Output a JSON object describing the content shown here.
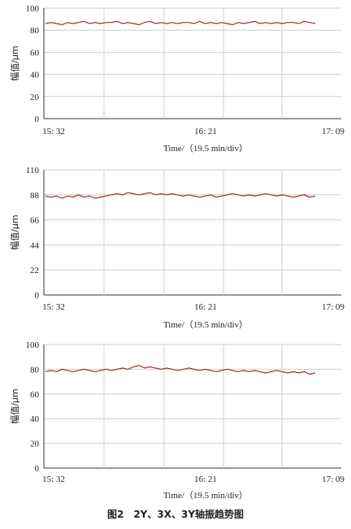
{
  "caption": "图2　2Y、3X、3Y轴振趋势图",
  "colors": {
    "line": "#a52a2a",
    "grid": "#cfcfcf",
    "axis": "#333333"
  },
  "chart_data": [
    {
      "type": "line",
      "ylabel": "幅值/μm",
      "xlabel": "Time/（19.5 min/div）",
      "ylim": [
        0,
        100
      ],
      "yticks": [
        "0",
        "20",
        "40",
        "60",
        "80",
        "100"
      ],
      "xticks": [
        "15: 32",
        "16: 21",
        "17: 09"
      ],
      "grid": true,
      "series": [
        {
          "values": [
            86,
            87,
            86,
            85,
            87,
            86,
            87,
            88,
            86,
            87,
            86,
            87,
            87,
            88,
            86,
            87,
            86,
            85,
            87,
            88,
            86,
            87,
            86,
            87,
            86,
            87,
            87,
            86,
            88,
            86,
            87,
            86,
            87,
            86,
            85,
            87,
            86,
            87,
            88,
            86,
            87,
            86,
            87,
            86,
            87,
            87,
            86,
            88,
            87,
            86
          ]
        }
      ]
    },
    {
      "type": "line",
      "ylabel": "幅值/μm",
      "xlabel": "Time/（19.5 min/div）",
      "ylim": [
        0,
        110
      ],
      "yticks": [
        "0",
        "22",
        "44",
        "66",
        "88",
        "110"
      ],
      "xticks": [
        "15: 32",
        "16: 21",
        "17: 09"
      ],
      "grid": true,
      "series": [
        {
          "values": [
            87,
            86,
            87,
            85,
            87,
            86,
            88,
            86,
            87,
            85,
            86,
            87,
            88,
            89,
            88,
            90,
            89,
            88,
            89,
            90,
            88,
            89,
            88,
            89,
            88,
            87,
            88,
            87,
            86,
            87,
            88,
            86,
            87,
            88,
            89,
            88,
            87,
            88,
            87,
            88,
            89,
            88,
            87,
            88,
            87,
            86,
            87,
            88,
            86,
            87
          ]
        }
      ]
    },
    {
      "type": "line",
      "ylabel": "幅值/μm",
      "xlabel": "Time/（19.5 min/div）",
      "ylim": [
        0,
        100
      ],
      "yticks": [
        "0",
        "20",
        "40",
        "60",
        "80",
        "100"
      ],
      "xticks": [
        "15: 32",
        "16: 21",
        "17: 09"
      ],
      "grid": true,
      "series": [
        {
          "values": [
            78,
            79,
            78,
            80,
            79,
            78,
            79,
            80,
            79,
            78,
            79,
            80,
            79,
            80,
            81,
            80,
            82,
            83,
            81,
            82,
            81,
            80,
            81,
            80,
            79,
            80,
            81,
            80,
            79,
            80,
            79,
            78,
            79,
            80,
            79,
            78,
            79,
            78,
            79,
            78,
            77,
            78,
            79,
            78,
            77,
            78,
            77,
            78,
            76,
            77
          ]
        }
      ]
    }
  ]
}
